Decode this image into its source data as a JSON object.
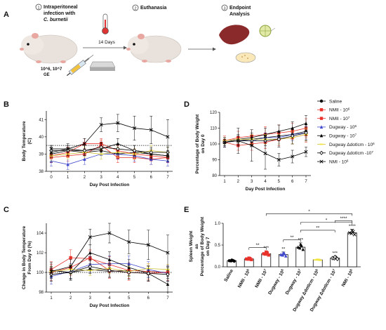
{
  "panel_labels": {
    "a": "A",
    "b": "B",
    "c": "C",
    "d": "D",
    "e": "E"
  },
  "schematic": {
    "steps": [
      {
        "num": "1",
        "text_lines": [
          "Intraperitoneal",
          "infection with",
          "C. burnetii"
        ]
      },
      {
        "num": "2",
        "text_lines": [
          "Euthanasia"
        ]
      },
      {
        "num": "3",
        "text_lines": [
          "Endpoint",
          "Analysis"
        ]
      }
    ],
    "duration": "14 Days",
    "dose_lines": [
      "10^6, 10^7",
      "GE"
    ]
  },
  "legend": [
    {
      "label": "Saline",
      "color": "#000000",
      "marker": "circle"
    },
    {
      "label": "NMII - 10^6",
      "color": "#e8322b",
      "marker": "square"
    },
    {
      "label": "NMII - 10^7",
      "color": "#e8322b",
      "marker": "square"
    },
    {
      "label": "Dugway - 10^6",
      "color": "#3f48cc",
      "marker": "triangle"
    },
    {
      "label": "Dugway - 10^7",
      "color": "#000000",
      "marker": "triangle"
    },
    {
      "label": "Dugway ΔdotIcm - 10^6",
      "color": "#f0e442",
      "marker": "dash"
    },
    {
      "label": "Dugway ΔdotIcm -10^7",
      "color": "#000000",
      "marker": "diamond"
    },
    {
      "label": "NMI - 10^6",
      "color": "#000000",
      "marker": "x"
    }
  ],
  "chart_data": [
    {
      "panel": "B",
      "type": "line",
      "xlabel": "Day Post Infection",
      "ylabel_lines": [
        "Body Temperature",
        "(C)"
      ],
      "x": [
        0,
        1,
        2,
        3,
        4,
        5,
        6,
        7
      ],
      "ylim": [
        38,
        41.5
      ],
      "yticks": [
        38,
        39,
        40,
        41
      ],
      "reference_line": 39.5,
      "series": [
        {
          "name": "Saline",
          "values": [
            39.0,
            39.2,
            39.1,
            39.2,
            39.0,
            39.1,
            39.0,
            38.9
          ],
          "err": [
            0.2,
            0.2,
            0.2,
            0.2,
            0.2,
            0.2,
            0.2,
            0.2
          ]
        },
        {
          "name": "NMII - 10^6",
          "values": [
            38.8,
            38.9,
            39.0,
            39.5,
            38.8,
            38.8,
            38.7,
            38.8
          ],
          "err": [
            0.3,
            0.3,
            0.3,
            0.3,
            0.3,
            0.3,
            0.3,
            0.3
          ]
        },
        {
          "name": "NMII - 10^7",
          "values": [
            38.9,
            39.1,
            39.6,
            39.6,
            39.2,
            39.0,
            38.9,
            38.8
          ],
          "err": [
            0.3,
            0.3,
            0.3,
            0.3,
            0.3,
            0.3,
            0.3,
            0.3
          ]
        },
        {
          "name": "Dugway - 10^6",
          "values": [
            38.6,
            38.4,
            38.7,
            39.0,
            39.0,
            38.9,
            38.7,
            38.6
          ],
          "err": [
            0.3,
            0.3,
            0.3,
            0.3,
            0.3,
            0.3,
            0.3,
            0.3
          ]
        },
        {
          "name": "Dugway - 10^7",
          "values": [
            39.1,
            39.3,
            39.2,
            39.3,
            39.6,
            39.2,
            39.0,
            38.9
          ],
          "err": [
            0.3,
            0.3,
            0.3,
            0.3,
            0.3,
            0.3,
            0.3,
            0.3
          ]
        },
        {
          "name": "Dugway ΔdotIcm - 10^6",
          "values": [
            38.9,
            39.0,
            39.1,
            39.0,
            39.1,
            39.0,
            39.2,
            39.1
          ],
          "err": [
            0.3,
            0.3,
            0.3,
            0.3,
            0.3,
            0.3,
            0.3,
            0.3
          ]
        },
        {
          "name": "Dugway ΔdotIcm -10^7",
          "values": [
            39.2,
            39.2,
            39.2,
            39.4,
            39.3,
            39.2,
            39.1,
            39.1
          ],
          "err": [
            0.3,
            0.3,
            0.3,
            0.3,
            0.3,
            0.3,
            0.3,
            0.3
          ]
        },
        {
          "name": "NMI - 10^6",
          "values": [
            39.3,
            39.3,
            39.6,
            40.7,
            40.8,
            40.5,
            40.4,
            40.0
          ],
          "err": [
            0.2,
            0.2,
            0.3,
            0.4,
            0.5,
            0.7,
            0.8,
            1.0
          ]
        }
      ]
    },
    {
      "panel": "C",
      "type": "line",
      "xlabel": "Day Post Infection",
      "ylabel_lines": [
        "Change in Body Temperature",
        "From Day 0 (%)"
      ],
      "x": [
        1,
        2,
        3,
        4,
        5,
        6,
        7
      ],
      "ylim": [
        98,
        105
      ],
      "yticks": [
        98,
        100,
        102,
        104
      ],
      "reference_line": 100,
      "series": [
        {
          "name": "Saline",
          "values": [
            100.2,
            100.0,
            100.3,
            100.1,
            100.2,
            100.1,
            100.0
          ],
          "err": [
            0.6,
            0.6,
            0.6,
            0.6,
            0.6,
            0.6,
            0.6
          ]
        },
        {
          "name": "NMII - 10^6",
          "values": [
            100.0,
            100.5,
            101.5,
            100.2,
            100.0,
            99.9,
            100.0
          ],
          "err": [
            0.8,
            0.8,
            0.8,
            0.8,
            0.8,
            0.8,
            0.8
          ]
        },
        {
          "name": "NMII - 10^7",
          "values": [
            100.3,
            101.5,
            101.4,
            100.8,
            100.2,
            100.1,
            100.0
          ],
          "err": [
            0.8,
            0.8,
            0.8,
            0.8,
            0.8,
            0.8,
            0.8
          ]
        },
        {
          "name": "Dugway - 10^6",
          "values": [
            99.6,
            100.1,
            100.8,
            100.9,
            100.9,
            100.3,
            99.9
          ],
          "err": [
            0.8,
            0.8,
            0.8,
            0.8,
            0.8,
            0.8,
            0.8
          ]
        },
        {
          "name": "Dugway - 10^7",
          "values": [
            100.2,
            100.0,
            102.0,
            101.3,
            100.5,
            99.9,
            98.8
          ],
          "err": [
            0.8,
            0.8,
            0.8,
            0.8,
            0.8,
            0.8,
            0.8
          ]
        },
        {
          "name": "Dugway ΔdotIcm - 10^6",
          "values": [
            100.1,
            100.3,
            100.2,
            100.4,
            100.1,
            100.4,
            100.3
          ],
          "err": [
            0.5,
            0.5,
            0.5,
            0.5,
            0.5,
            0.5,
            0.5
          ]
        },
        {
          "name": "Dugway ΔdotIcm -10^7",
          "values": [
            99.8,
            100.0,
            100.6,
            100.2,
            100.0,
            99.9,
            99.8
          ],
          "err": [
            0.7,
            0.7,
            0.7,
            0.7,
            0.7,
            0.7,
            0.7
          ]
        },
        {
          "name": "NMI - 10^6",
          "values": [
            100.1,
            100.6,
            103.6,
            104.0,
            103.1,
            102.8,
            102.0
          ],
          "err": [
            0.5,
            0.7,
            0.8,
            1.0,
            1.2,
            1.5,
            1.8
          ]
        }
      ]
    },
    {
      "panel": "D",
      "type": "line",
      "xlabel": "Day Post Infection",
      "ylabel_lines": [
        "Percentage of Body Weight",
        "on Day 0"
      ],
      "x": [
        1,
        2,
        3,
        4,
        5,
        6,
        7
      ],
      "ylim": [
        80,
        120
      ],
      "yticks": [
        80,
        90,
        100,
        110,
        120
      ],
      "series": [
        {
          "name": "Saline",
          "values": [
            101,
            102,
            103,
            104,
            105,
            106,
            108
          ],
          "err": [
            2,
            2,
            2,
            2,
            3,
            3,
            3
          ]
        },
        {
          "name": "NMII - 10^6",
          "values": [
            102,
            104,
            105,
            106,
            107,
            108,
            110
          ],
          "err": [
            3,
            4,
            4,
            5,
            5,
            5,
            6
          ]
        },
        {
          "name": "NMII - 10^7",
          "values": [
            101,
            99,
            100,
            101,
            103,
            104,
            106
          ],
          "err": [
            3,
            3,
            4,
            4,
            4,
            4,
            5
          ]
        },
        {
          "name": "Dugway - 10^6",
          "values": [
            101,
            102,
            102,
            104,
            104,
            106,
            107
          ],
          "err": [
            3,
            3,
            3,
            3,
            4,
            4,
            4
          ]
        },
        {
          "name": "Dugway - 10^7",
          "values": [
            101,
            103,
            104,
            106,
            108,
            110,
            113
          ],
          "err": [
            2,
            3,
            3,
            4,
            4,
            4,
            5
          ]
        },
        {
          "name": "Dugway ΔdotIcm - 10^6",
          "values": [
            102,
            103,
            103,
            103,
            103,
            104,
            106
          ],
          "err": [
            2,
            2,
            3,
            3,
            3,
            4,
            4
          ]
        },
        {
          "name": "Dugway ΔdotIcm -10^7",
          "values": [
            101,
            102,
            102,
            102,
            103,
            105,
            107
          ],
          "err": [
            2,
            3,
            3,
            3,
            5,
            5,
            5
          ]
        },
        {
          "name": "NMI - 10^6",
          "values": [
            101,
            102,
            99,
            94,
            90,
            92,
            95
          ],
          "err": [
            3,
            8,
            10,
            10,
            4,
            4,
            3
          ]
        }
      ]
    },
    {
      "panel": "E",
      "type": "bar",
      "ylabel_lines": [
        "Spleen Weight",
        "as",
        "Percentage of Body Weight",
        "on Day 7"
      ],
      "ylim": [
        0,
        1.0
      ],
      "yticks": [
        0.0,
        0.5,
        1.0
      ],
      "categories": [
        "Saline",
        "NMII - 10^6",
        "NMII - 10^7",
        "Dugway - 10^6",
        "Dugway - 10^7",
        "Dugway ΔdotIcm - 10^6",
        "Dugway ΔdotIcm - 10^7",
        "NMI - 10^6"
      ],
      "values": [
        0.14,
        0.18,
        0.3,
        0.28,
        0.45,
        0.16,
        0.2,
        0.78
      ],
      "err": [
        0.02,
        0.03,
        0.06,
        0.06,
        0.1,
        0.02,
        0.04,
        0.08
      ],
      "significance_above_bars": [
        "",
        "",
        "***",
        "**",
        "***",
        "",
        "***",
        "****"
      ],
      "brackets": [
        {
          "from": 1,
          "to": 2,
          "label": "**"
        },
        {
          "from": 3,
          "to": 4,
          "label": "**"
        },
        {
          "from": 4,
          "to": 6,
          "label": "**"
        },
        {
          "from": 4,
          "to": 7,
          "label": "*"
        },
        {
          "from": 2,
          "to": 7,
          "label": "*"
        },
        {
          "from": 6,
          "to": 7,
          "label": "****"
        }
      ]
    }
  ]
}
